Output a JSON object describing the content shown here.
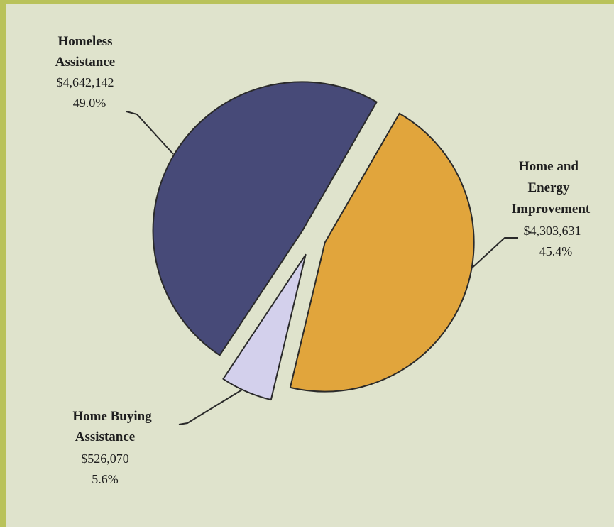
{
  "chart_data": {
    "type": "pie",
    "title": "",
    "exploded": true,
    "slices": [
      {
        "name_lines": [
          "Homeless",
          "Assistance"
        ],
        "amount": "$4,642,142",
        "percent": "49.0%",
        "value": 49.0,
        "color": "#474a78"
      },
      {
        "name_lines": [
          "Home and",
          "Energy",
          "Improvement"
        ],
        "amount": "$4,303,631",
        "percent": "45.4%",
        "value": 45.4,
        "color": "#e1a53c"
      },
      {
        "name_lines": [
          "Home Buying",
          "Assistance"
        ],
        "amount": "$526,070",
        "percent": "5.6%",
        "value": 5.6,
        "color": "#d3d0ec"
      }
    ]
  },
  "colors": {
    "background": "#dfe3cc",
    "frame": "#b9c25a",
    "outline": "#2a2a2a"
  }
}
